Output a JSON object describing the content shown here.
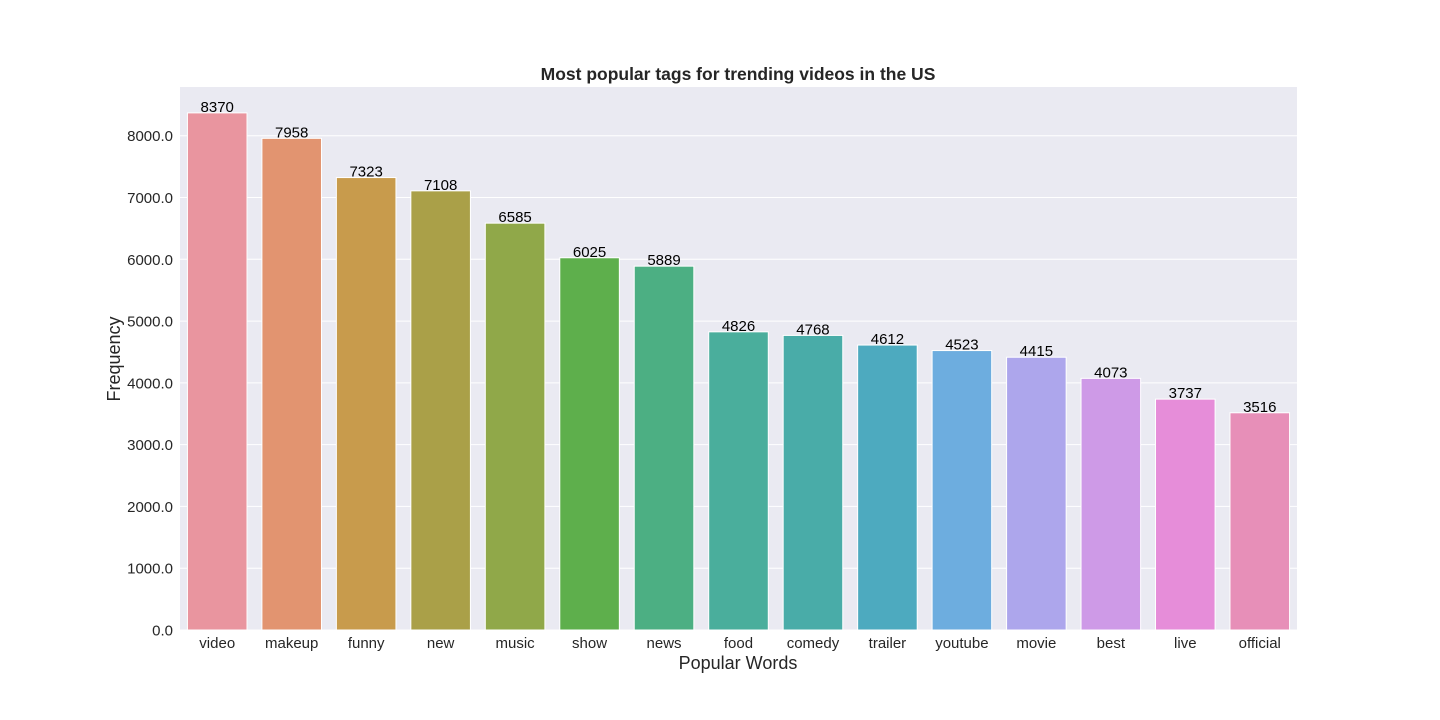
{
  "chart_data": {
    "type": "bar",
    "title": "Most popular tags for trending videos in the US",
    "xlabel": "Popular Words",
    "ylabel": "Frequency",
    "categories": [
      "video",
      "makeup",
      "funny",
      "new",
      "music",
      "show",
      "news",
      "food",
      "comedy",
      "trailer",
      "youtube",
      "movie",
      "best",
      "live",
      "official"
    ],
    "values": [
      8370,
      7958,
      7323,
      7108,
      6585,
      6025,
      5889,
      4826,
      4768,
      4612,
      4523,
      4415,
      4073,
      3737,
      3516
    ],
    "data_labels": [
      "8370",
      "7958",
      "7323",
      "7108",
      "6585",
      "6025",
      "5889",
      "4826",
      "4768",
      "4612",
      "4523",
      "4415",
      "4073",
      "3737",
      "3516"
    ],
    "yticks": [
      0,
      1000,
      2000,
      3000,
      4000,
      5000,
      6000,
      7000,
      8000
    ],
    "ytick_labels": [
      "0.0",
      "1000.0",
      "2000.0",
      "3000.0",
      "4000.0",
      "5000.0",
      "6000.0",
      "7000.0",
      "8000.0"
    ],
    "ylim": [
      0,
      8789
    ],
    "grid": true,
    "legend": "none",
    "plot_background": "#EAEAF2",
    "grid_color": "#FFFFFF",
    "colors": [
      "#E9959F",
      "#E29470",
      "#C89B4C",
      "#AAA048",
      "#90A849",
      "#5EAF4C",
      "#4CAF83",
      "#4AAE9C",
      "#49ACA8",
      "#4DAABF",
      "#6DADDF",
      "#ADA6EC",
      "#CE9AE7",
      "#E68DD9",
      "#E78FB8"
    ]
  }
}
